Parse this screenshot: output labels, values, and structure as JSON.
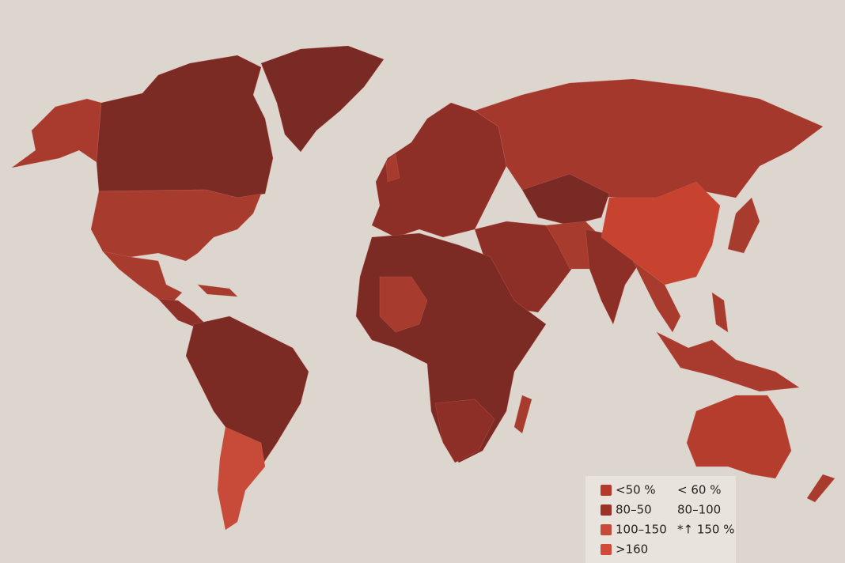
{
  "legend": {
    "rows": [
      {
        "swatch_color": "#b53a2c",
        "labels": [
          "<50 %",
          "< 60 %"
        ]
      },
      {
        "swatch_color": "#9a3226",
        "labels": [
          "80–50",
          "80–100"
        ]
      },
      {
        "swatch_color": "#c8483a",
        "labels": [
          "100–150",
          "*↑ 150 %"
        ]
      },
      {
        "swatch_color": "#d24a38",
        "labels": [
          ">160"
        ]
      }
    ]
  }
}
